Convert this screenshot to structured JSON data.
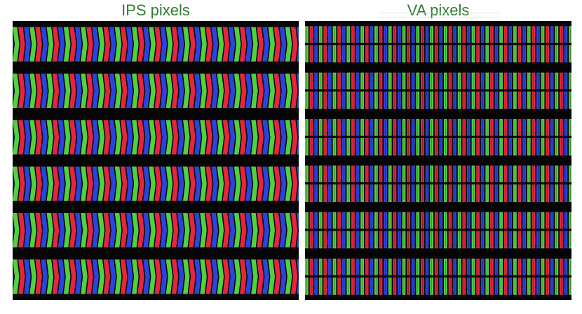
{
  "captions": {
    "ips": "IPS pixels",
    "va": "VA pixels"
  },
  "colors": {
    "caption": "#2e7d32",
    "subpixel_red": "#e8243f",
    "subpixel_green": "#4fd23c",
    "subpixel_blue": "#2a44e0",
    "background": "#050505"
  },
  "subpixel_order": [
    "green",
    "red",
    "blue"
  ],
  "panels": {
    "ips": {
      "subpixel_shape": "chevron",
      "pixel_rows": 6
    },
    "va": {
      "subpixel_shape": "split-bar",
      "pixel_rows": 6
    }
  }
}
